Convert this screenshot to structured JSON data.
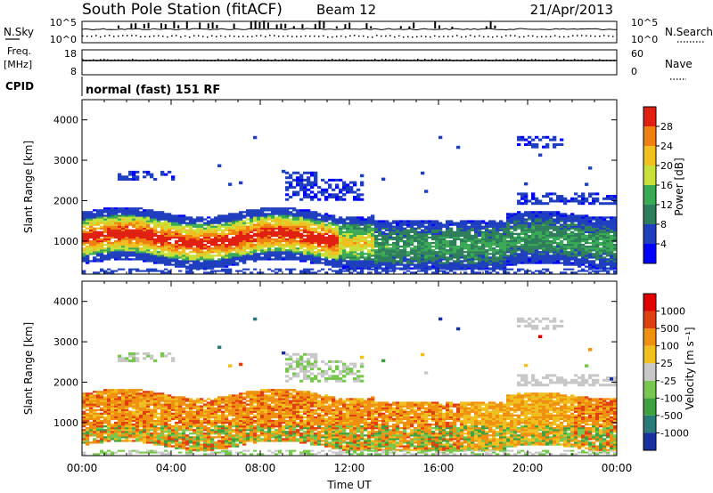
{
  "header": {
    "station": "South Pole Station (fitACF)",
    "beam": "Beam 12",
    "date": "21/Apr/2013",
    "cpid_label": "CPID",
    "cpid_value": "normal (fast) 151 RF"
  },
  "noise_panel": {
    "left_label": "N.Sky",
    "right_label": "N.Search",
    "ticks": [
      "10^5",
      "10^0"
    ]
  },
  "freq_panel": {
    "left_label_line1": "Freq.",
    "left_label_line2": "[MHz]",
    "right_label": "Nave",
    "left_ticks": [
      "18",
      "8"
    ],
    "right_ticks": [
      "60",
      "0"
    ]
  },
  "chart_data": [
    {
      "type": "heatmap",
      "name": "power",
      "ylabel": "Slant Range [km]",
      "ylim": [
        180,
        4500
      ],
      "yticks": [
        "4000",
        "3000",
        "2000",
        "1000"
      ],
      "colorbar": {
        "label": "Power [dB]",
        "ticks": [
          "28",
          "24",
          "20",
          "16",
          "12",
          "8",
          "4"
        ],
        "colors": [
          "#0000ff",
          "#1f3fbf",
          "#2e7d5b",
          "#3aaa55",
          "#c8e03a",
          "#f0c020",
          "#f08010",
          "#e02010"
        ]
      }
    },
    {
      "type": "heatmap",
      "name": "velocity",
      "ylabel": "Slant Range [km]",
      "ylim": [
        180,
        4500
      ],
      "yticks": [
        "4000",
        "3000",
        "2000",
        "1000"
      ],
      "xlabel": "Time UT",
      "xticks": [
        "00:00",
        "04:00",
        "08:00",
        "12:00",
        "16:00",
        "20:00",
        "00:00"
      ],
      "colorbar": {
        "label": "Velocity [m s⁻¹]",
        "ticks": [
          "1000",
          "500",
          "100",
          "25",
          "-25",
          "-100",
          "-500",
          "-1000"
        ],
        "colors": [
          "#1a2fa0",
          "#2b7a7a",
          "#3fa040",
          "#78c850",
          "#c8c8c8",
          "#f0c020",
          "#f09010",
          "#e04010",
          "#e00000"
        ]
      }
    }
  ]
}
